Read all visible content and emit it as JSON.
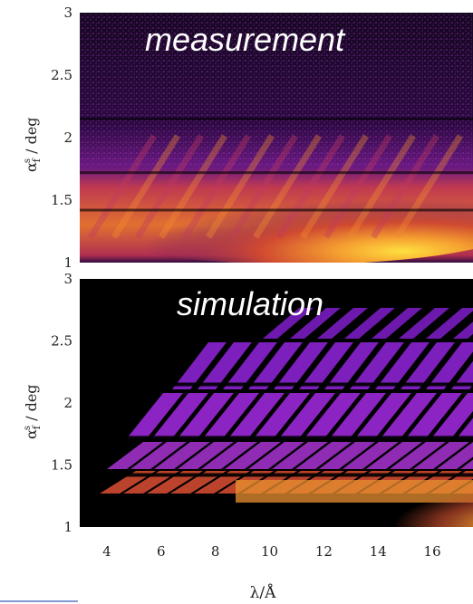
{
  "chart_data": [
    {
      "type": "heatmap",
      "title": "measurement",
      "ylabel_main": "α",
      "ylabel_sub": "f",
      "ylabel_sup": "s",
      "ylabel_unit": " / deg",
      "xlim": [
        3,
        17.5
      ],
      "ylim": [
        1,
        3
      ],
      "yticks": [
        1,
        1.5,
        2,
        2.5,
        3
      ],
      "ytick_labels": [
        "1",
        "1.5",
        "2",
        "2.5",
        "3"
      ],
      "colormap": [
        "#000000",
        "#5a1a8a",
        "#a020c0",
        "#d0403a",
        "#f09030",
        "#ffe040"
      ],
      "horizontal_bands_deg": [
        1.42,
        1.72,
        2.15
      ]
    },
    {
      "type": "heatmap",
      "title": "simulation",
      "ylabel_main": "α",
      "ylabel_sub": "f",
      "ylabel_sup": "s",
      "ylabel_unit": " / deg",
      "xlim": [
        3,
        17.5
      ],
      "ylim": [
        1,
        3
      ],
      "yticks": [
        1,
        1.5,
        2,
        2.5,
        3
      ],
      "ytick_labels": [
        "1",
        "1.5",
        "2",
        "2.5",
        "3"
      ],
      "xticks": [
        4,
        6,
        8,
        10,
        12,
        14,
        16
      ],
      "xtick_labels": [
        "4",
        "6",
        "8",
        "10",
        "12",
        "14",
        "16"
      ],
      "xlabel": "λ/Å",
      "colormap": [
        "#000000",
        "#5a1a8a",
        "#a020c0",
        "#d0403a",
        "#f09030",
        "#ffe040"
      ],
      "horizontal_bands_deg": [
        1.42,
        1.72,
        2.15
      ]
    }
  ]
}
